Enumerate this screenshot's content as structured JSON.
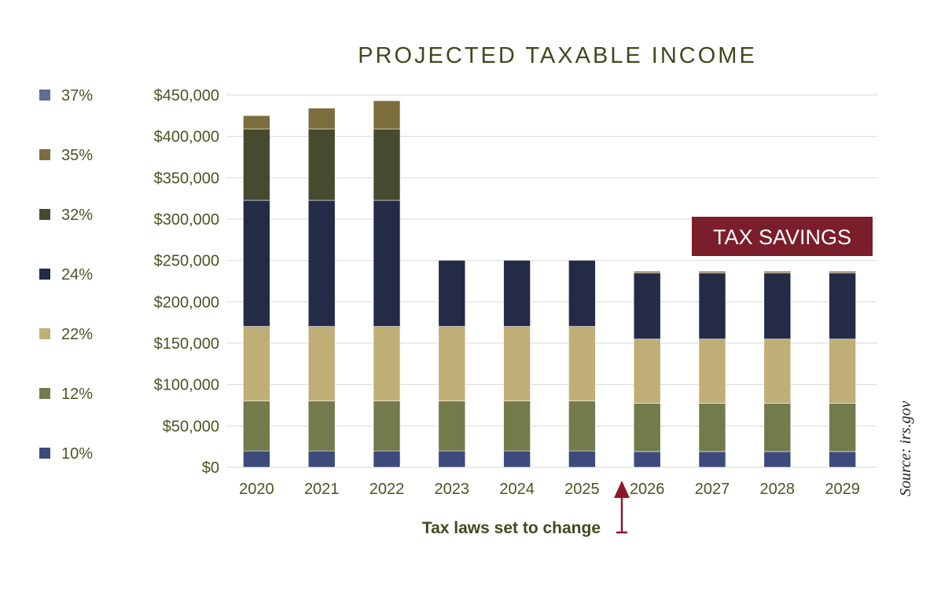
{
  "chart_data": {
    "type": "bar",
    "stacked": true,
    "title": "PROJECTED TAXABLE INCOME",
    "categories": [
      "2020",
      "2021",
      "2022",
      "2023",
      "2024",
      "2025",
      "2026",
      "2027",
      "2028",
      "2029"
    ],
    "y_ticks": [
      "$0",
      "$50,000",
      "$100,000",
      "$150,000",
      "$200,000",
      "$250,000",
      "$300,000",
      "$350,000",
      "$400,000",
      "$450,000"
    ],
    "ylim": [
      0,
      450000
    ],
    "grid": true,
    "legend_placement": "left",
    "series": [
      {
        "name": "10%",
        "color": "#3d4a7c",
        "values": [
          19750,
          19750,
          19750,
          19750,
          19750,
          19750,
          19050,
          19050,
          19050,
          19050
        ]
      },
      {
        "name": "12%",
        "color": "#737a4b",
        "values": [
          60500,
          60500,
          60500,
          60500,
          60500,
          60500,
          58350,
          58350,
          58350,
          58350
        ]
      },
      {
        "name": "22%",
        "color": "#bfae76",
        "values": [
          90000,
          90000,
          90000,
          90000,
          90000,
          90000,
          77600,
          77600,
          77600,
          77600
        ]
      },
      {
        "name": "24%",
        "color": "#232b47",
        "values": [
          152500,
          152500,
          152500,
          80000,
          80000,
          80000,
          80000,
          80000,
          80000,
          80000
        ]
      },
      {
        "name": "32%",
        "color": "#464b2f",
        "values": [
          86350,
          86350,
          86350,
          0,
          0,
          0,
          0,
          0,
          0,
          0
        ]
      },
      {
        "name": "35%",
        "color": "#7b6e3c",
        "values": [
          16000,
          25000,
          34000,
          0,
          0,
          0,
          2000,
          2000,
          2000,
          2000
        ]
      },
      {
        "name": "37%",
        "color": "#626c94",
        "values": [
          0,
          0,
          0,
          0,
          0,
          0,
          0,
          0,
          0,
          0
        ]
      }
    ],
    "annotations": {
      "tax_savings": "TAX SAVINGS",
      "tax_laws": "Tax laws set to change",
      "source": "Source: irs.gov"
    }
  },
  "colors": {
    "title": "#3e4a1e",
    "tick_text": "#4a5523",
    "savings_box": "#7a1e2b",
    "arrow": "#8b1a2b",
    "grid": "#d9d9d9"
  }
}
